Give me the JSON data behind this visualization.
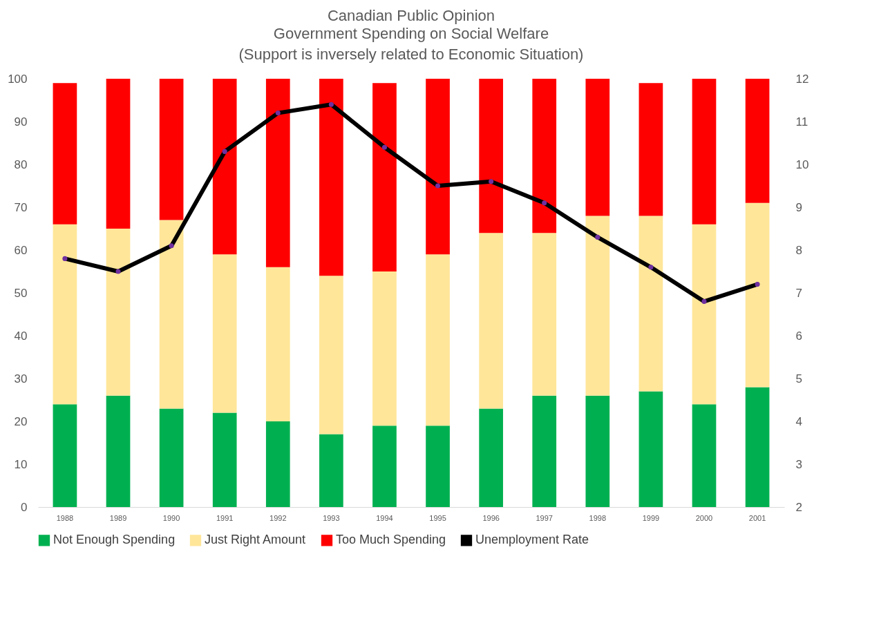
{
  "chart_data": {
    "type": "bar",
    "stacked": true,
    "title": "Canadian Public Opinion",
    "subtitle": "Government Spending on Social Welfare\n(Support is inversely related to Economic Situation)",
    "categories": [
      "1988",
      "1989",
      "1990",
      "1991",
      "1992",
      "1993",
      "1994",
      "1995",
      "1996",
      "1997",
      "1998",
      "1999",
      "2000",
      "2001"
    ],
    "series": [
      {
        "name": "Not Enough Spending",
        "color": "#00b050",
        "values": [
          24,
          26,
          23,
          22,
          20,
          17,
          19,
          19,
          23,
          26,
          26,
          27,
          24,
          28
        ]
      },
      {
        "name": "Just Right Amount",
        "color": "#ffe699",
        "values": [
          42,
          39,
          44,
          37,
          36,
          37,
          36,
          40,
          41,
          38,
          42,
          41,
          42,
          43
        ]
      },
      {
        "name": "Too Much Spending",
        "color": "#ff0000",
        "values": [
          33,
          35,
          33,
          41,
          44,
          46,
          44,
          41,
          36,
          36,
          32,
          31,
          34,
          29
        ]
      },
      {
        "name": "Unemployment Rate",
        "type": "line",
        "axis": "y2",
        "color": "#000000",
        "marker": "circle",
        "values": [
          7.8,
          7.5,
          8.1,
          10.3,
          11.2,
          11.4,
          10.4,
          9.5,
          9.6,
          9.1,
          8.3,
          7.6,
          6.8,
          7.2
        ]
      }
    ],
    "ylim": [
      0,
      100
    ],
    "yticks": [
      0,
      10,
      20,
      30,
      40,
      50,
      60,
      70,
      80,
      90,
      100
    ],
    "y2lim": [
      2,
      12
    ],
    "y2ticks": [
      2,
      3,
      4,
      5,
      6,
      7,
      8,
      9,
      10,
      11,
      12
    ],
    "legend": "bottom",
    "grid": false
  }
}
